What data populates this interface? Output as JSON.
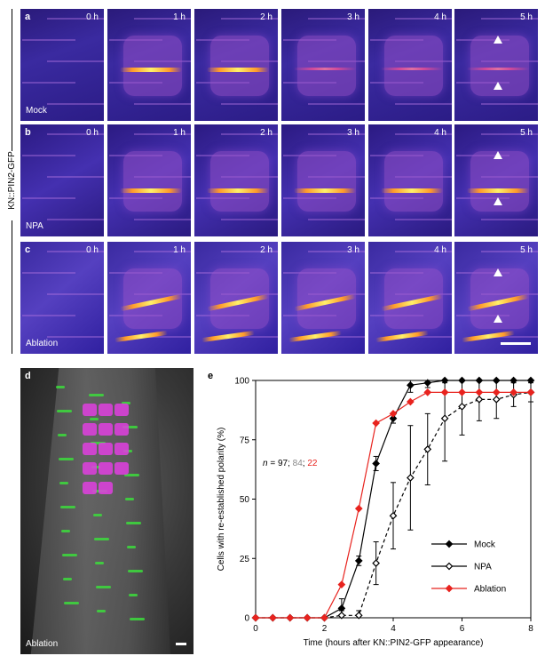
{
  "figure": {
    "side_label": "KN::PIN2-GFP",
    "rows": [
      {
        "letter": "a",
        "treatment": "Mock"
      },
      {
        "letter": "b",
        "treatment": "NPA"
      },
      {
        "letter": "c",
        "treatment": "Ablation"
      }
    ],
    "time_labels": [
      "0 h",
      "1 h",
      "2 h",
      "3 h",
      "4 h",
      "5 h"
    ],
    "panel_d": {
      "letter": "d",
      "label": "Ablation"
    },
    "panel_e_letter": "e"
  },
  "chart_data": {
    "type": "line",
    "title": "",
    "xlabel": "Time (hours after KN::PIN2-GFP appearance)",
    "ylabel": "Cells with re-established polarity (%)",
    "xlim": [
      0,
      8
    ],
    "ylim": [
      0,
      100
    ],
    "xticks": [
      "0",
      "2",
      "4",
      "6",
      "8"
    ],
    "yticks": [
      "0",
      "25",
      "50",
      "75",
      "100"
    ],
    "grid": false,
    "legend_position": "bottom-right",
    "annotation": {
      "prefix": "n",
      "parts": [
        "= 97; ",
        "84",
        "; ",
        "22"
      ]
    },
    "series": [
      {
        "name": "Mock",
        "color": "#000000",
        "marker": "filled-diamond",
        "dash": "solid",
        "x": [
          0,
          0.5,
          1,
          1.5,
          2,
          2.5,
          3,
          3.5,
          4,
          4.5,
          5,
          5.5,
          6,
          6.5,
          7,
          7.5,
          8
        ],
        "y": [
          0,
          0,
          0,
          0,
          0,
          4,
          24,
          65,
          84,
          98,
          99,
          100,
          100,
          100,
          100,
          100,
          100
        ],
        "err": [
          0,
          0,
          0,
          0,
          0,
          4,
          2,
          3,
          2,
          3,
          2,
          1,
          0,
          0,
          0,
          0,
          0
        ]
      },
      {
        "name": "NPA",
        "color": "#000000",
        "marker": "open-diamond",
        "dash": "dashed",
        "x": [
          0,
          0.5,
          1,
          1.5,
          2,
          2.5,
          3,
          3.5,
          4,
          4.5,
          5,
          5.5,
          6,
          6.5,
          7,
          7.5,
          8
        ],
        "y": [
          0,
          0,
          0,
          0,
          0,
          1,
          1,
          23,
          43,
          59,
          71,
          84,
          89,
          92,
          92,
          94,
          95
        ],
        "err": [
          0,
          0,
          0,
          0,
          0,
          2,
          2,
          9,
          14,
          22,
          15,
          18,
          12,
          9,
          8,
          5,
          4
        ]
      },
      {
        "name": "Ablation",
        "color": "#e8231e",
        "marker": "filled-diamond",
        "dash": "solid",
        "x": [
          0,
          0.5,
          1,
          1.5,
          2,
          2.5,
          3,
          3.5,
          4,
          4.5,
          5,
          5.5,
          6,
          6.5,
          7,
          7.5,
          8
        ],
        "y": [
          0,
          0,
          0,
          0,
          0,
          14,
          46,
          82,
          86,
          91,
          95,
          95,
          95,
          95,
          95,
          95,
          95
        ],
        "err": [
          0,
          0,
          0,
          0,
          0,
          0,
          0,
          0,
          0,
          0,
          0,
          0,
          0,
          0,
          0,
          0,
          0
        ]
      }
    ]
  }
}
